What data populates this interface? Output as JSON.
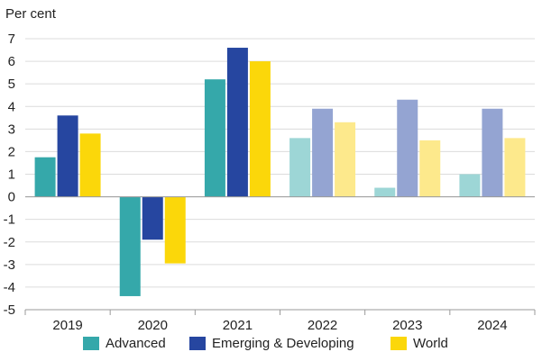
{
  "chart_data": {
    "type": "bar",
    "unit_label": "Per cent",
    "categories": [
      "2019",
      "2020",
      "2021",
      "2022",
      "2023",
      "2024"
    ],
    "series": [
      {
        "name": "Advanced",
        "color": "#35a8aa",
        "projection_color": "#9dd6d6",
        "values": [
          1.75,
          -4.4,
          5.2,
          2.6,
          0.4,
          1.0
        ]
      },
      {
        "name": "Emerging & Developing",
        "color": "#2646a0",
        "projection_color": "#94a4d2",
        "values": [
          3.6,
          -1.9,
          6.6,
          3.9,
          4.3,
          3.9
        ]
      },
      {
        "name": "World",
        "color": "#fbd70a",
        "projection_color": "#fde98c",
        "values": [
          2.8,
          -2.95,
          6.0,
          3.3,
          2.5,
          2.6
        ]
      }
    ],
    "projection_start_index": 3,
    "ylim": [
      -5,
      7
    ],
    "yticks": [
      7,
      6,
      5,
      4,
      3,
      2,
      1,
      0,
      -1,
      -2,
      -3,
      -4,
      -5
    ],
    "grid": true,
    "legend_position": "bottom"
  }
}
